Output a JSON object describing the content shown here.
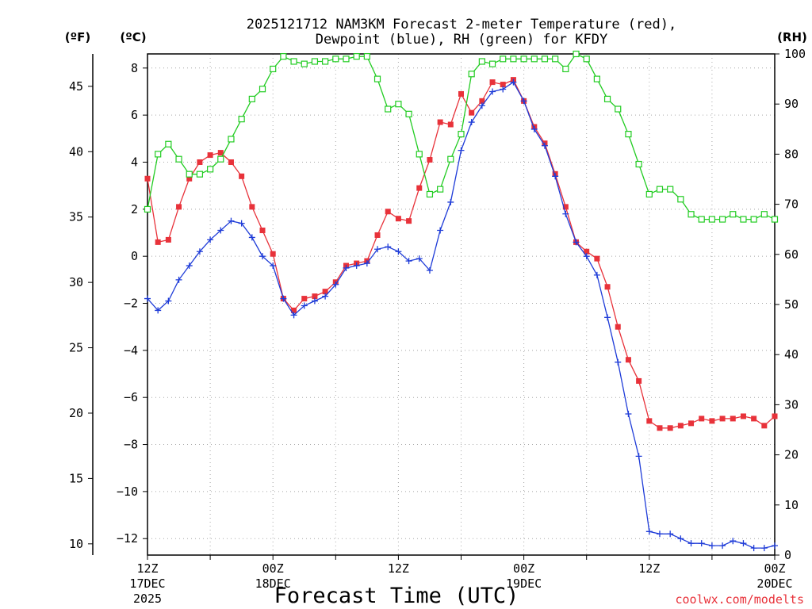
{
  "chart_data": {
    "type": "line",
    "title_line1": "2025121712 NAM3KM Forecast 2-meter Temperature (red),",
    "title_line2": "Dewpoint (blue), RH (green) for KFDY",
    "xlabel": "Forecast Time (UTC)",
    "credit": "coolwx.com/modelts",
    "units": {
      "fahrenheit": "(ºF)",
      "celsius": "(ºC)",
      "rh": "(RH)"
    },
    "x_range_hours": [
      0,
      60
    ],
    "y_celsius_range": [
      -12.7,
      8.6
    ],
    "y_rh_range": [
      0,
      100
    ],
    "x_ticks": [
      {
        "hour": 0,
        "line1": "12Z",
        "line2": "17DEC",
        "line3": "2025"
      },
      {
        "hour": 12,
        "line1": "00Z",
        "line2": "18DEC",
        "line3": ""
      },
      {
        "hour": 24,
        "line1": "12Z",
        "line2": "",
        "line3": ""
      },
      {
        "hour": 36,
        "line1": "00Z",
        "line2": "19DEC",
        "line3": ""
      },
      {
        "hour": 48,
        "line1": "12Z",
        "line2": "",
        "line3": ""
      },
      {
        "hour": 60,
        "line1": "00Z",
        "line2": "20DEC",
        "line3": ""
      }
    ],
    "celsius_ticks": [
      8,
      6,
      4,
      2,
      0,
      -2,
      -4,
      -6,
      -8,
      -10,
      -12
    ],
    "celsius_tick_labels": [
      "8",
      "6",
      "4",
      "2",
      "0",
      "−2",
      "−4",
      "−6",
      "−8",
      "−10",
      "−12"
    ],
    "fahrenheit_ticks": [
      45,
      40,
      35,
      30,
      25,
      20,
      15,
      10
    ],
    "rh_ticks": [
      100,
      90,
      80,
      70,
      60,
      50,
      40,
      30,
      20,
      10,
      0
    ],
    "series": [
      {
        "name": "2-meter Temperature",
        "unit": "C",
        "color": "#e8323a",
        "marker": "filled-square",
        "x": [
          0,
          1,
          2,
          3,
          4,
          5,
          6,
          7,
          8,
          9,
          10,
          11,
          12,
          13,
          14,
          15,
          16,
          17,
          18,
          19,
          20,
          21,
          22,
          23,
          24,
          25,
          26,
          27,
          28,
          29,
          30,
          31,
          32,
          33,
          34,
          35,
          36,
          37,
          38,
          39,
          40,
          41,
          42,
          43,
          44,
          45,
          46,
          47,
          48,
          49,
          50,
          51,
          52,
          53,
          54,
          55,
          56,
          57,
          58,
          59,
          60
        ],
        "values": [
          3.3,
          0.6,
          0.7,
          2.1,
          3.3,
          4.0,
          4.3,
          4.4,
          4.0,
          3.4,
          2.1,
          1.1,
          0.1,
          -1.8,
          -2.3,
          -1.8,
          -1.7,
          -1.5,
          -1.1,
          -0.4,
          -0.3,
          -0.2,
          0.9,
          1.9,
          1.6,
          1.5,
          2.9,
          4.1,
          5.7,
          5.6,
          6.9,
          6.1,
          6.6,
          7.4,
          7.3,
          7.5,
          6.6,
          5.5,
          4.8,
          3.5,
          2.1,
          0.6,
          0.2,
          -0.1,
          -1.3,
          -3.0,
          -4.4,
          -5.3,
          -7.0,
          -7.3,
          -7.3,
          -7.2,
          -7.1,
          -6.9,
          -7.0,
          -6.9,
          -6.9,
          -6.8,
          -6.9,
          -7.2,
          -6.8
        ]
      },
      {
        "name": "Dewpoint",
        "unit": "C",
        "color": "#1f3cd8",
        "marker": "plus",
        "x": [
          0,
          1,
          2,
          3,
          4,
          5,
          6,
          7,
          8,
          9,
          10,
          11,
          12,
          13,
          14,
          15,
          16,
          17,
          18,
          19,
          20,
          21,
          22,
          23,
          24,
          25,
          26,
          27,
          28,
          29,
          30,
          31,
          32,
          33,
          34,
          35,
          36,
          37,
          38,
          39,
          40,
          41,
          42,
          43,
          44,
          45,
          46,
          47,
          48,
          49,
          50,
          51,
          52,
          53,
          54,
          55,
          56,
          57,
          58,
          59,
          60
        ],
        "values": [
          -1.8,
          -2.3,
          -1.9,
          -1.0,
          -0.4,
          0.2,
          0.7,
          1.1,
          1.5,
          1.4,
          0.8,
          0.0,
          -0.4,
          -1.8,
          -2.5,
          -2.1,
          -1.9,
          -1.7,
          -1.2,
          -0.5,
          -0.4,
          -0.3,
          0.3,
          0.4,
          0.2,
          -0.2,
          -0.1,
          -0.6,
          1.1,
          2.3,
          4.5,
          5.7,
          6.4,
          7.0,
          7.1,
          7.4,
          6.6,
          5.4,
          4.7,
          3.4,
          1.8,
          0.6,
          0.0,
          -0.8,
          -2.6,
          -4.5,
          -6.7,
          -8.5,
          -11.7,
          -11.8,
          -11.8,
          -12.0,
          -12.2,
          -12.2,
          -12.3,
          -12.3,
          -12.1,
          -12.2,
          -12.4,
          -12.4,
          -12.3
        ]
      },
      {
        "name": "RH",
        "unit": "%",
        "color": "#22cc22",
        "marker": "open-square",
        "x": [
          0,
          1,
          2,
          3,
          4,
          5,
          6,
          7,
          8,
          9,
          10,
          11,
          12,
          13,
          14,
          15,
          16,
          17,
          18,
          19,
          20,
          21,
          22,
          23,
          24,
          25,
          26,
          27,
          28,
          29,
          30,
          31,
          32,
          33,
          34,
          35,
          36,
          37,
          38,
          39,
          40,
          41,
          42,
          43,
          44,
          45,
          46,
          47,
          48,
          49,
          50,
          51,
          52,
          53,
          54,
          55,
          56,
          57,
          58,
          59,
          60
        ],
        "values": [
          69,
          80,
          82,
          79,
          76,
          76,
          77,
          79,
          83,
          87,
          91,
          93,
          97,
          99.5,
          98.5,
          98,
          98.5,
          98.5,
          99,
          99,
          99.5,
          99.5,
          95,
          89,
          90,
          88,
          80,
          72,
          73,
          79,
          84,
          96,
          98.5,
          98,
          99,
          99,
          99,
          99,
          99,
          99,
          97,
          100,
          99,
          95,
          91,
          89,
          84,
          78,
          72,
          73,
          73,
          71,
          68,
          67,
          67,
          67,
          68,
          67,
          67,
          68,
          67
        ]
      }
    ]
  }
}
